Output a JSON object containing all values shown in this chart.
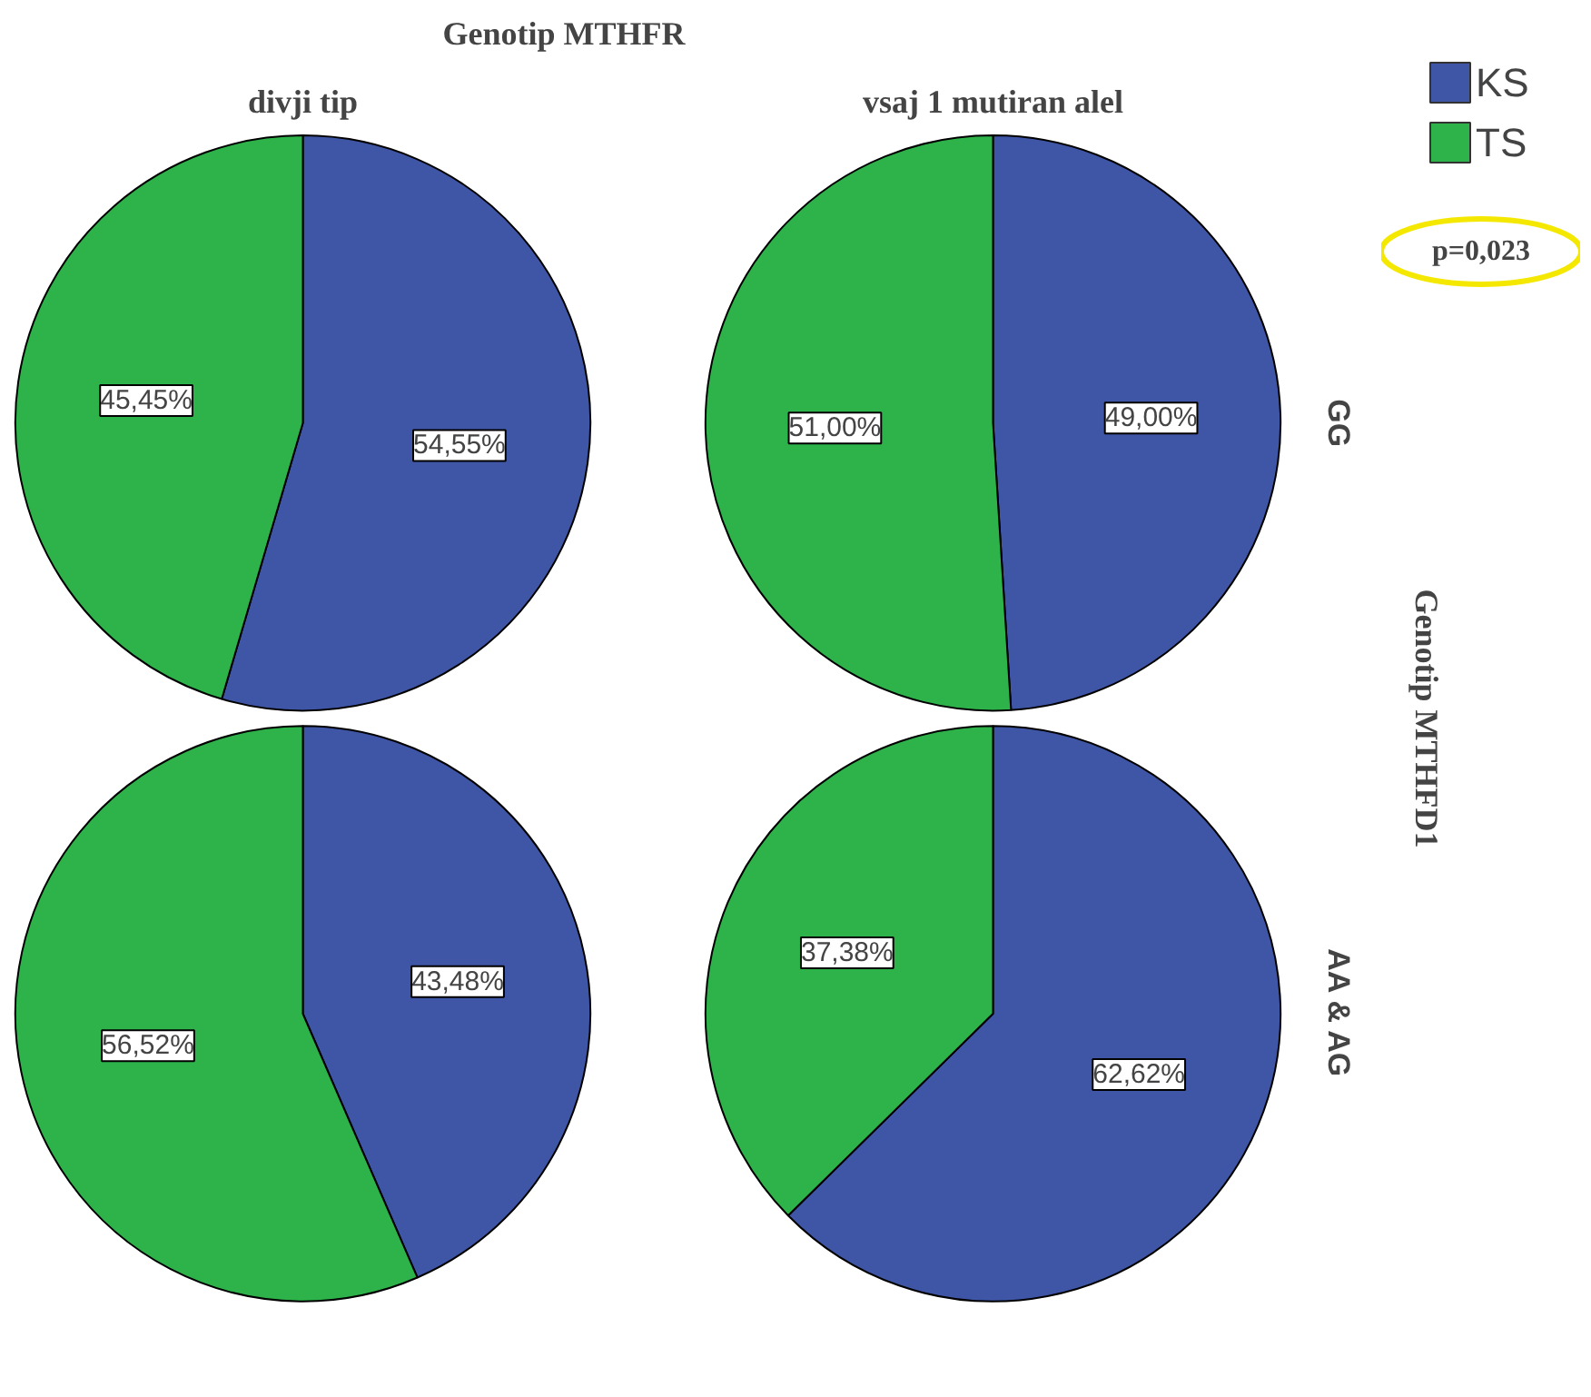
{
  "chart_data": [
    {
      "type": "pie",
      "title": "divji tip",
      "categories": [
        "KS",
        "TS"
      ],
      "values": [
        54.55,
        45.45
      ],
      "colors": [
        "#3f56a6",
        "#2db34a"
      ],
      "value_labels": [
        "54,55%",
        "45,45%"
      ],
      "legend": "top right",
      "annotations": [
        "Genotip MTHFR"
      ]
    },
    {
      "type": "pie",
      "title": "vsaj 1 mutiran alel",
      "y2label": "GG",
      "categories": [
        null,
        null
      ],
      "values": [
        49.0,
        51.0
      ],
      "colors": [
        "#3f56a6",
        "#2db34a"
      ],
      "value_labels": [
        "49,00%",
        "51,00%"
      ],
      "annotations": [
        "Genotip MTHFD1",
        "p=0,023"
      ]
    },
    {
      "type": "pie",
      "categories": [
        null,
        null
      ],
      "values": [
        43.48,
        56.52
      ],
      "colors": [
        "#3f56a6",
        "#2db34a"
      ],
      "value_labels": [
        "43,48%",
        "56,52%"
      ]
    },
    {
      "type": "pie",
      "y2label": "AA & AG",
      "categories": [
        null,
        null
      ],
      "values": [
        62.62,
        37.38
      ],
      "colors": [
        "#3f56a6",
        "#2db34a"
      ],
      "value_labels": [
        "62,62%",
        "37,38%"
      ]
    }
  ]
}
